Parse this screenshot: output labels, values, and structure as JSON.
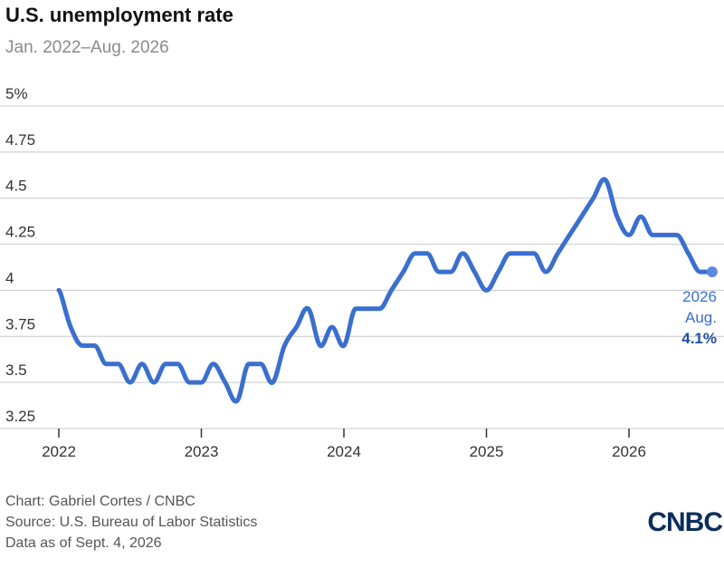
{
  "chart_data": {
    "type": "line",
    "title": "U.S. unemployment rate",
    "subtitle": "Jan. 2022–Aug. 2026",
    "xlabel": "",
    "ylabel": "",
    "x_ticks": [
      "2022",
      "2023",
      "2024",
      "2025",
      "2026"
    ],
    "y_ticks": [
      "3.25",
      "3.5",
      "3.75",
      "4",
      "4.25",
      "4.5",
      "4.75",
      "5%"
    ],
    "ylim": [
      3.25,
      5
    ],
    "grid": true,
    "legend": "none",
    "line_color": "#3a6fcf",
    "series": [
      {
        "name": "",
        "x": [
          "2022-01",
          "2022-02",
          "2022-03",
          "2022-04",
          "2022-05",
          "2022-06",
          "2022-07",
          "2022-08",
          "2022-09",
          "2022-10",
          "2022-11",
          "2022-12",
          "2023-01",
          "2023-02",
          "2023-03",
          "2023-04",
          "2023-05",
          "2023-06",
          "2023-07",
          "2023-08",
          "2023-09",
          "2023-10",
          "2023-11",
          "2023-12",
          "2024-01",
          "2024-02",
          "2024-03",
          "2024-04",
          "2024-05",
          "2024-06",
          "2024-07",
          "2024-08",
          "2024-09",
          "2024-10",
          "2024-11",
          "2024-12",
          "2025-01",
          "2025-02",
          "2025-03",
          "2025-04",
          "2025-05",
          "2025-06",
          "2025-07",
          "2025-08",
          "2025-09",
          "2025-10",
          "2025-11",
          "2025-12",
          "2026-01",
          "2026-02",
          "2026-03",
          "2026-04",
          "2026-05",
          "2026-06",
          "2026-07",
          "2026-08"
        ],
        "values": [
          4.0,
          3.8,
          3.7,
          3.7,
          3.6,
          3.6,
          3.5,
          3.6,
          3.5,
          3.6,
          3.6,
          3.5,
          3.5,
          3.6,
          3.5,
          3.4,
          3.6,
          3.6,
          3.5,
          3.7,
          3.8,
          3.9,
          3.7,
          3.8,
          3.7,
          3.9,
          3.9,
          3.9,
          4.0,
          4.1,
          4.2,
          4.2,
          4.1,
          4.1,
          4.2,
          4.1,
          4.0,
          4.1,
          4.2,
          4.2,
          4.2,
          4.1,
          4.2,
          4.3,
          4.4,
          4.5,
          4.6,
          4.4,
          4.3,
          4.4,
          4.3,
          4.3,
          4.3,
          4.2,
          4.1,
          4.1
        ]
      }
    ],
    "annotation": {
      "line1": "2026",
      "line2": "Aug.",
      "value": "4.1%"
    }
  },
  "footer": {
    "credit": "Chart: Gabriel Cortes / CNBC",
    "source": "Source: U.S. Bureau of Labor Statistics",
    "data_as_of": "Data as of Sept. 4, 2026"
  },
  "logo_text": "CNBC"
}
